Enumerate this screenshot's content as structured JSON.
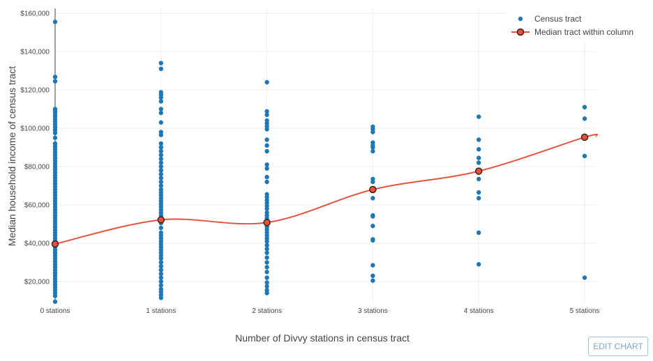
{
  "colors": {
    "tract": "#1f77b4",
    "median_line": "#e5533f",
    "median_marker_fill": "#e5533f",
    "median_marker_edge": "#3a1f1a",
    "grid": "#eeeeee"
  },
  "edit_button_label": "EDIT CHART",
  "chart_data": {
    "type": "scatter",
    "xlabel": "Number of Divvy stations in census tract",
    "ylabel": "Median household income of census tract",
    "categories": [
      "0 stations",
      "1 stations",
      "2 stations",
      "3 stations",
      "4 stations",
      "5 stations"
    ],
    "y_ticks": [
      20000,
      40000,
      60000,
      80000,
      100000,
      120000,
      140000,
      160000
    ],
    "y_tick_labels": [
      "$20,000",
      "$40,000",
      "$60,000",
      "$80,000",
      "$100,000",
      "$120,000",
      "$140,000",
      "$160,000"
    ],
    "ylim": [
      8000,
      163000
    ],
    "grid": true,
    "legend_position": "top-right",
    "series": [
      {
        "name": "Census tract",
        "mode": "markers",
        "points": [
          [
            0,
            155500
          ],
          [
            0,
            126800
          ],
          [
            0,
            124500
          ],
          [
            0,
            110000
          ],
          [
            0,
            109000
          ],
          [
            0,
            108000
          ],
          [
            0,
            106500
          ],
          [
            0,
            105000
          ],
          [
            0,
            103500
          ],
          [
            0,
            102000
          ],
          [
            0,
            100500
          ],
          [
            0,
            99000
          ],
          [
            0,
            97500
          ],
          [
            0,
            95000
          ],
          [
            0,
            92000
          ],
          [
            0,
            90500
          ],
          [
            0,
            89000
          ],
          [
            0,
            87500
          ],
          [
            0,
            86000
          ],
          [
            0,
            84500
          ],
          [
            0,
            83000
          ],
          [
            0,
            81500
          ],
          [
            0,
            80000
          ],
          [
            0,
            78500
          ],
          [
            0,
            77000
          ],
          [
            0,
            75500
          ],
          [
            0,
            74000
          ],
          [
            0,
            72500
          ],
          [
            0,
            71000
          ],
          [
            0,
            69500
          ],
          [
            0,
            68000
          ],
          [
            0,
            66500
          ],
          [
            0,
            65000
          ],
          [
            0,
            63500
          ],
          [
            0,
            62000
          ],
          [
            0,
            60500
          ],
          [
            0,
            59000
          ],
          [
            0,
            57500
          ],
          [
            0,
            56000
          ],
          [
            0,
            54500
          ],
          [
            0,
            53000
          ],
          [
            0,
            51500
          ],
          [
            0,
            50000
          ],
          [
            0,
            48500
          ],
          [
            0,
            47000
          ],
          [
            0,
            45500
          ],
          [
            0,
            44000
          ],
          [
            0,
            42500
          ],
          [
            0,
            41000
          ],
          [
            0,
            39500
          ],
          [
            0,
            38000
          ],
          [
            0,
            36500
          ],
          [
            0,
            35000
          ],
          [
            0,
            33500
          ],
          [
            0,
            32000
          ],
          [
            0,
            30500
          ],
          [
            0,
            29000
          ],
          [
            0,
            27500
          ],
          [
            0,
            26000
          ],
          [
            0,
            24500
          ],
          [
            0,
            23000
          ],
          [
            0,
            21500
          ],
          [
            0,
            20000
          ],
          [
            0,
            18500
          ],
          [
            0,
            17000
          ],
          [
            0,
            15500
          ],
          [
            0,
            14000
          ],
          [
            0,
            12500
          ],
          [
            0,
            9500
          ],
          [
            1,
            134000
          ],
          [
            1,
            131000
          ],
          [
            1,
            118800
          ],
          [
            1,
            117500
          ],
          [
            1,
            116000
          ],
          [
            1,
            114000
          ],
          [
            1,
            110000
          ],
          [
            1,
            108000
          ],
          [
            1,
            103000
          ],
          [
            1,
            98000
          ],
          [
            1,
            96500
          ],
          [
            1,
            92000
          ],
          [
            1,
            90000
          ],
          [
            1,
            88000
          ],
          [
            1,
            86000
          ],
          [
            1,
            84000
          ],
          [
            1,
            82000
          ],
          [
            1,
            80000
          ],
          [
            1,
            78000
          ],
          [
            1,
            76000
          ],
          [
            1,
            74000
          ],
          [
            1,
            72000
          ],
          [
            1,
            70000
          ],
          [
            1,
            68000
          ],
          [
            1,
            66500
          ],
          [
            1,
            65000
          ],
          [
            1,
            63500
          ],
          [
            1,
            62000
          ],
          [
            1,
            60500
          ],
          [
            1,
            59000
          ],
          [
            1,
            57500
          ],
          [
            1,
            56000
          ],
          [
            1,
            54500
          ],
          [
            1,
            53000
          ],
          [
            1,
            50500
          ],
          [
            1,
            48000
          ],
          [
            1,
            45500
          ],
          [
            1,
            44000
          ],
          [
            1,
            42500
          ],
          [
            1,
            41000
          ],
          [
            1,
            39500
          ],
          [
            1,
            38000
          ],
          [
            1,
            36500
          ],
          [
            1,
            35000
          ],
          [
            1,
            33500
          ],
          [
            1,
            32000
          ],
          [
            1,
            30000
          ],
          [
            1,
            28000
          ],
          [
            1,
            26000
          ],
          [
            1,
            24000
          ],
          [
            1,
            22000
          ],
          [
            1,
            20000
          ],
          [
            1,
            18000
          ],
          [
            1,
            16000
          ],
          [
            1,
            14500
          ],
          [
            1,
            13000
          ],
          [
            1,
            11500
          ],
          [
            2,
            124000
          ],
          [
            2,
            108800
          ],
          [
            2,
            107000
          ],
          [
            2,
            104000
          ],
          [
            2,
            102500
          ],
          [
            2,
            101000
          ],
          [
            2,
            99500
          ],
          [
            2,
            94000
          ],
          [
            2,
            91000
          ],
          [
            2,
            88000
          ],
          [
            2,
            81000
          ],
          [
            2,
            79000
          ],
          [
            2,
            74500
          ],
          [
            2,
            72000
          ],
          [
            2,
            65500
          ],
          [
            2,
            64000
          ],
          [
            2,
            62500
          ],
          [
            2,
            61000
          ],
          [
            2,
            59500
          ],
          [
            2,
            58000
          ],
          [
            2,
            56000
          ],
          [
            2,
            54500
          ],
          [
            2,
            53000
          ],
          [
            2,
            51500
          ],
          [
            2,
            50000
          ],
          [
            2,
            48500
          ],
          [
            2,
            47000
          ],
          [
            2,
            45500
          ],
          [
            2,
            44000
          ],
          [
            2,
            42500
          ],
          [
            2,
            41000
          ],
          [
            2,
            39000
          ],
          [
            2,
            37000
          ],
          [
            2,
            35000
          ],
          [
            2,
            32500
          ],
          [
            2,
            30000
          ],
          [
            2,
            27500
          ],
          [
            2,
            25000
          ],
          [
            2,
            22000
          ],
          [
            2,
            19500
          ],
          [
            2,
            17500
          ],
          [
            2,
            15500
          ],
          [
            2,
            14000
          ],
          [
            3,
            100800
          ],
          [
            3,
            99500
          ],
          [
            3,
            98000
          ],
          [
            3,
            92500
          ],
          [
            3,
            91000
          ],
          [
            3,
            90000
          ],
          [
            3,
            88000
          ],
          [
            3,
            73500
          ],
          [
            3,
            72000
          ],
          [
            3,
            63500
          ],
          [
            3,
            54500
          ],
          [
            3,
            54000
          ],
          [
            3,
            49000
          ],
          [
            3,
            42000
          ],
          [
            3,
            41500
          ],
          [
            3,
            28500
          ],
          [
            3,
            23000
          ],
          [
            3,
            20500
          ],
          [
            4,
            106000
          ],
          [
            4,
            94000
          ],
          [
            4,
            89000
          ],
          [
            4,
            84500
          ],
          [
            4,
            82000
          ],
          [
            4,
            73500
          ],
          [
            4,
            66500
          ],
          [
            4,
            63500
          ],
          [
            4,
            45500
          ],
          [
            4,
            29000
          ],
          [
            5,
            111000
          ],
          [
            5,
            105000
          ],
          [
            5,
            85500
          ],
          [
            5,
            22000
          ]
        ]
      },
      {
        "name": "Median tract within column",
        "mode": "lines+markers",
        "line_shape": "spline",
        "points": [
          [
            0,
            39600
          ],
          [
            1,
            52200
          ],
          [
            2,
            50800
          ],
          [
            3,
            68000
          ],
          [
            4,
            77600
          ],
          [
            5,
            95300
          ]
        ]
      }
    ]
  }
}
